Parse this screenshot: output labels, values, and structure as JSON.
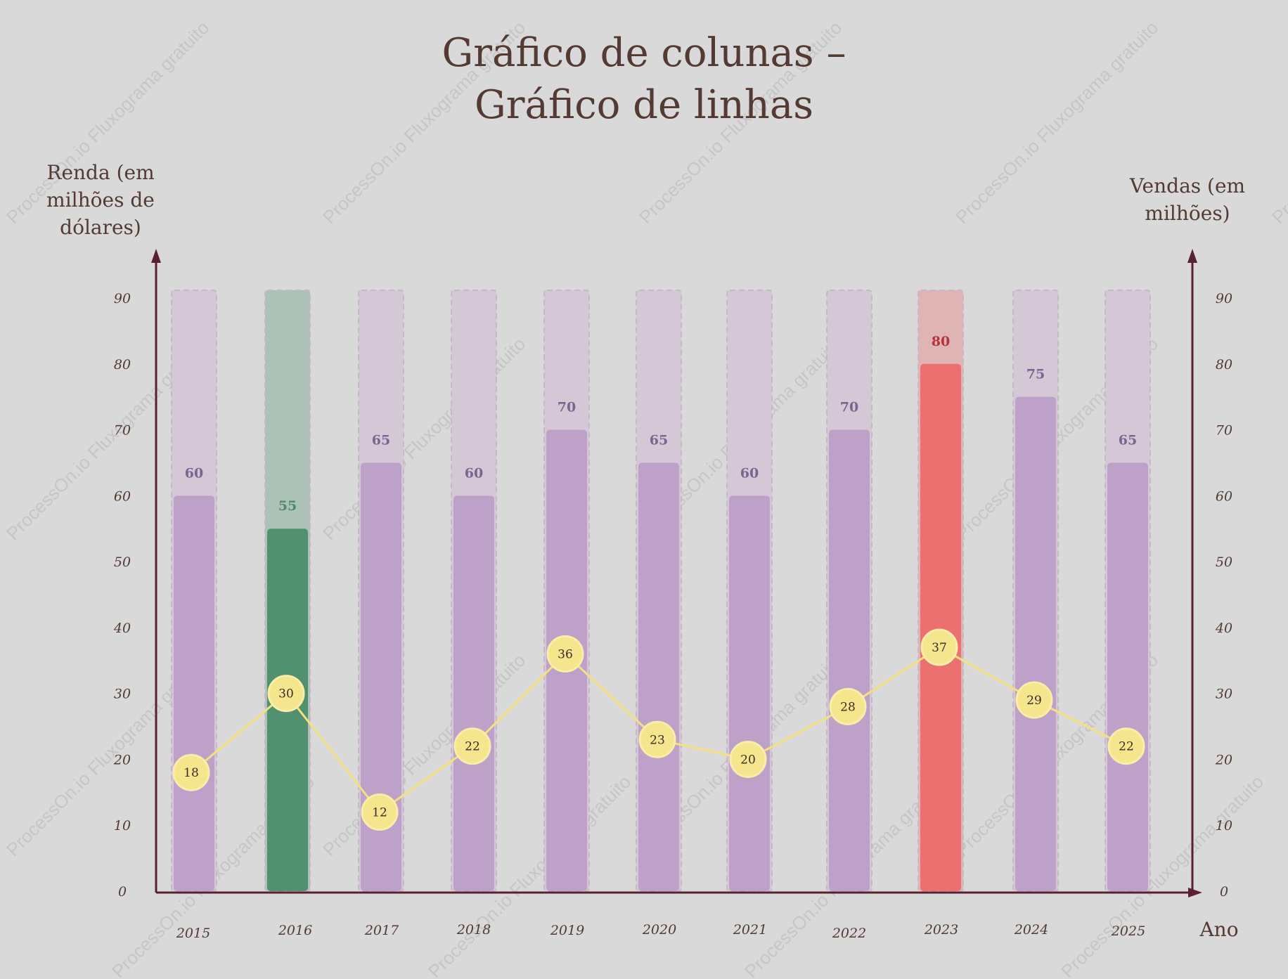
{
  "chart_data": {
    "type": "bar",
    "title_lines": [
      "Gráfico de colunas –",
      "Gráfico de linhas"
    ],
    "ylabel_left_lines": [
      "Renda (em",
      "milhões de",
      "dólares)"
    ],
    "ylabel_right_lines": [
      "Vendas (em",
      "milhões)"
    ],
    "xlabel": "Ano",
    "categories": [
      "2015",
      "2016",
      "2017",
      "2018",
      "2019",
      "2020",
      "2021",
      "2022",
      "2023",
      "2024",
      "2025"
    ],
    "series": [
      {
        "type": "bar",
        "axis": "left",
        "values": [
          60,
          55,
          65,
          60,
          70,
          65,
          60,
          70,
          80,
          75,
          65
        ],
        "highlights": {
          "1": "#529170",
          "8": "#ec7070"
        }
      },
      {
        "type": "line",
        "axis": "right",
        "values": [
          18,
          30,
          12,
          22,
          36,
          23,
          20,
          28,
          37,
          29,
          22
        ]
      }
    ],
    "ylim_left": [
      0,
      90
    ],
    "ylim_right": [
      0,
      90
    ],
    "yticks_left": [
      "0",
      "10",
      "20",
      "30",
      "40",
      "50",
      "60",
      "70",
      "80",
      "90"
    ],
    "yticks_right": [
      "0",
      "10",
      "20",
      "30",
      "40",
      "50",
      "60",
      "70",
      "80",
      "90"
    ],
    "grid": false,
    "colors": {
      "bar_default": "#bea1c9",
      "bar_background": "#d4c8d6",
      "bar_label_default": "#7a6590",
      "highlight_green": "#529170",
      "highlight_green_background": "#adc2b6",
      "highlight_green_label": "#4f8a66",
      "highlight_red": "#ec7070",
      "highlight_red_background": "#e0b4b5",
      "highlight_red_label": "#b5333a",
      "line": "#f3e07f",
      "marker_fill": "#f5e58d",
      "axis": "#5a2030",
      "text": "#533a33"
    }
  },
  "watermark": {
    "text": "ProcessOn.io Fluxograma gratuito"
  }
}
